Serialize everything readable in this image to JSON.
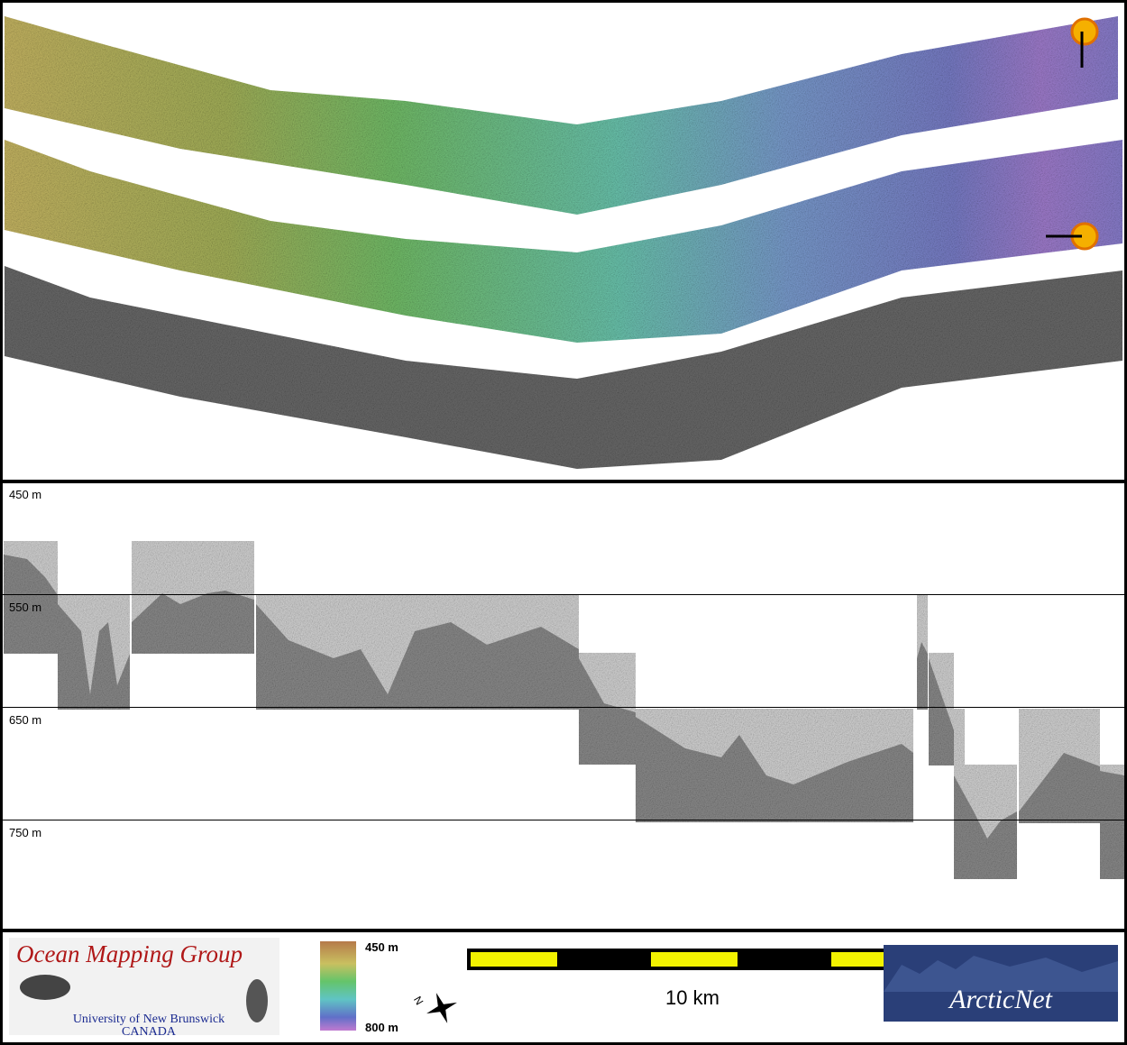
{
  "profile": {
    "depth_labels": [
      "450 m",
      "550 m",
      "650 m",
      "750 m"
    ]
  },
  "footer": {
    "logo": {
      "title": "Ocean Mapping Group",
      "university": "University of New Brunswick",
      "country": "CANADA"
    },
    "color_scale": {
      "top": "450 m",
      "bottom": "800 m"
    },
    "compass": "N",
    "scale_bar": "10 km",
    "partner": "ArcticNet"
  }
}
